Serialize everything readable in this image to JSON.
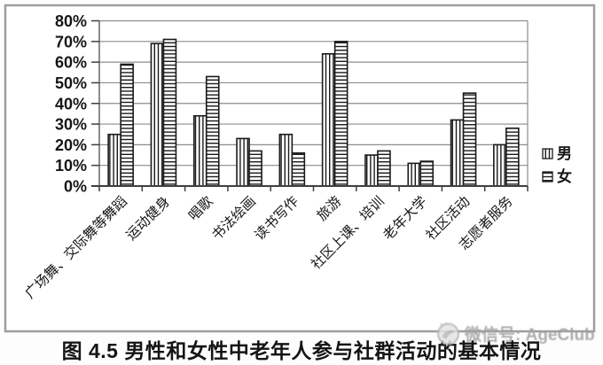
{
  "chart_data": {
    "type": "bar",
    "title": "图 4.5 男性和女性中老年人参与社群活动的基本情况",
    "categories": [
      "广场舞、交际舞等舞蹈",
      "运动健身",
      "唱歌",
      "书法绘画",
      "读书写作",
      "旅游",
      "社区上课、培训",
      "老年大学",
      "社区活动",
      "志愿者服务"
    ],
    "series": [
      {
        "name": "男",
        "pattern": "vertical-stripes",
        "values": [
          25,
          69,
          34,
          23,
          25,
          64,
          15,
          11,
          32,
          20
        ]
      },
      {
        "name": "女",
        "pattern": "horizontal-stripes",
        "values": [
          59,
          71,
          53,
          17,
          16,
          70,
          17,
          12,
          45,
          28
        ]
      }
    ],
    "xlabel": "",
    "ylabel": "",
    "ylim": [
      0,
      80
    ],
    "ytick_step": 10,
    "ytick_labels": [
      "0%",
      "10%",
      "20%",
      "30%",
      "40%",
      "50%",
      "60%",
      "70%",
      "80%"
    ],
    "grid": true,
    "legend_position": "right",
    "x_label_rotation_deg": -45
  },
  "caption": {
    "text": "图 4.5 男性和女性中老年人参与社群活动的基本情况"
  },
  "watermark": {
    "text": "微信号: AgeClub",
    "icon": "wechat-public-account-logo"
  },
  "colors": {
    "bar_stroke": "#1a1a1a",
    "bar_fill": "#ffffff",
    "grid": "#8c8c8c",
    "axis": "#3f3f3f",
    "frame": "#9e9e9e",
    "text": "#161616",
    "watermark": "#a0a0a0",
    "background": "#fdfdfd"
  }
}
